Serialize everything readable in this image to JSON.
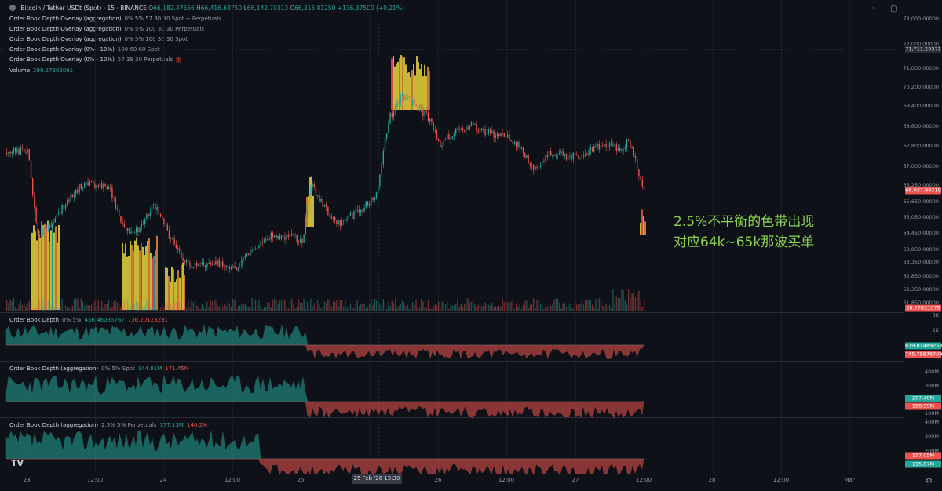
{
  "header": {
    "symbol": "Bitcoin / Tether USDt (Spot) · 15 · BINANCE",
    "open_label": "O",
    "open": "66,182.47656",
    "high_label": "H",
    "high": "66,416.68750",
    "low_label": "L",
    "low": "66,142.70313",
    "close_label": "C",
    "close": "66,315.81250",
    "change": "+136.37500 (+0.21%)"
  },
  "indicators": [
    {
      "name": "Order Book Depth Overlay (aggregation)",
      "params": "0% 5% 57 30 30 Spot + Perpetuals"
    },
    {
      "name": "Order Book Depth Overlay (aggregation)",
      "params": "0% 5% 100 30 30 Perpetuals"
    },
    {
      "name": "Order Book Depth Overlay (aggregation)",
      "params": "0% 5% 100 30 30 Spot"
    },
    {
      "name": "Order Book Depth Overlay (0% - 10%)",
      "params": "100 60 60 Spot"
    },
    {
      "name": "Order Book Depth Overlay (0% - 10%)",
      "params": "57 39 30 Perpetuals"
    },
    {
      "name": "Volume",
      "params": "299.27362061"
    }
  ],
  "price_axis": [
    "73,000.00000",
    "72,000.00000",
    "71,000.00000",
    "70,200.00000",
    "69,400.00000",
    "68,600.00000",
    "67,800.00000",
    "67,000.00000",
    "66,250.00000",
    "65,650.00000",
    "65,050.00000",
    "64,450.00000",
    "63,850.00000",
    "63,350.00000",
    "62,850.00000",
    "62,350.00000",
    "61,850.00000"
  ],
  "price_tags": {
    "crosshair": "71,711.29371",
    "last": "66,037.99219",
    "volume": "38.77831078"
  },
  "pane1": {
    "title": "Order Book Depth",
    "params": "0% 5%",
    "bid": "456.46035767",
    "ask": "736.20123291",
    "axis": [
      "3K",
      "2K"
    ],
    "tag_bid": "819.01489258",
    "tag_ask": "745.79876709"
  },
  "pane2": {
    "title": "Order Book Depth (aggregation)",
    "params": "0% 5% Spot",
    "bid": "144.81M",
    "ask": "171.45M",
    "axis": [
      "400M",
      "300M",
      "100M"
    ],
    "tag_bid": "207.48M",
    "tag_ask": "158.99M"
  },
  "pane3": {
    "title": "Order Book Depth (aggregation)",
    "params": "2.5% 5% Perpetuals",
    "bid": "177.13M",
    "ask": "140.2M",
    "axis": [
      "400M",
      "300M",
      "200M"
    ],
    "tag_ask": "137.05M",
    "tag_bid": "115.87M"
  },
  "time_axis": [
    "23",
    "12:00",
    "24",
    "12:00",
    "25",
    "26",
    "12:00",
    "27",
    "12:00",
    "28",
    "12:00",
    "Mar"
  ],
  "crosshair_time": "25 Feb '26  13:30",
  "annotation": {
    "line1": "2.5%不平衡的色带出现",
    "line2": "对应64k~65k那波买单"
  },
  "colors": {
    "background": "#0f1118",
    "up": "#26a69a",
    "down": "#ef5350",
    "heat_yellow": "#e8d53a",
    "annotation": "#8bd449"
  }
}
